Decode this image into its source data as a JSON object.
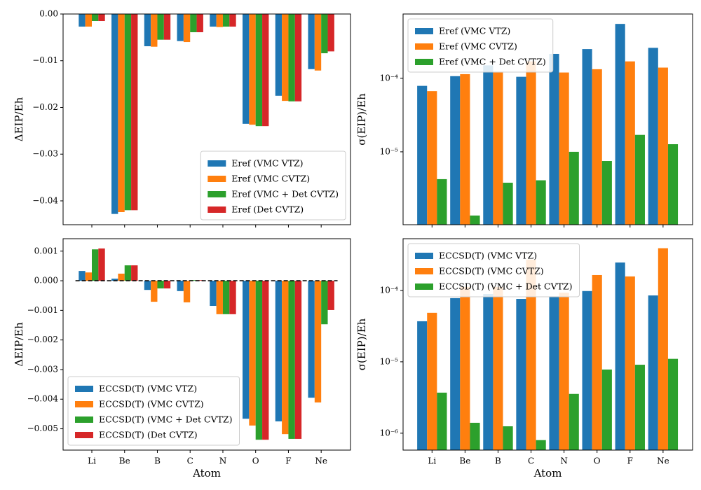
{
  "chart_data": [
    {
      "type": "bar",
      "ylabel": "ΔEIP/Eh",
      "legend": "lower right",
      "ylim": [
        -0.0451,
        0
      ],
      "yticks": [
        {
          "value": 0,
          "label": "0.00"
        },
        {
          "value": -0.01,
          "label": "−0.01"
        },
        {
          "value": -0.02,
          "label": "−0.02"
        },
        {
          "value": -0.03,
          "label": "−0.03"
        },
        {
          "value": -0.04,
          "label": "−0.04"
        }
      ],
      "series": [
        {
          "name": "Eref (VMC VTZ)",
          "color": "#1f77b4",
          "values": [
            -0.0027,
            -0.0428,
            -0.0069,
            -0.0058,
            -0.0027,
            -0.0235,
            -0.0175,
            -0.0118
          ]
        },
        {
          "name": "Eref (VMC CVTZ)",
          "color": "#ff7f0e",
          "values": [
            -0.0027,
            -0.0424,
            -0.007,
            -0.006,
            -0.0028,
            -0.0237,
            -0.0186,
            -0.0121
          ]
        },
        {
          "name": "Eref (VMC + Det CVTZ)",
          "color": "#2ca02c",
          "values": [
            -0.0015,
            -0.042,
            -0.0055,
            -0.0039,
            -0.0027,
            -0.024,
            -0.0187,
            -0.0084
          ]
        },
        {
          "name": "Eref (Det CVTZ)",
          "color": "#d62728",
          "values": [
            -0.0015,
            -0.042,
            -0.0055,
            -0.0039,
            -0.0027,
            -0.024,
            -0.0187,
            -0.008
          ]
        }
      ]
    },
    {
      "type": "bar",
      "ylabel": "σ(EIP)/Eh",
      "legend": "upper left",
      "log": true,
      "ylim": [
        1.02e-06,
        0.00075
      ],
      "yticks": [
        {
          "value": 1e-05,
          "label": "10⁻⁵"
        },
        {
          "value": 0.0001,
          "label": "10⁻⁴"
        }
      ],
      "series": [
        {
          "name": "Eref (VMC VTZ)",
          "color": "#1f77b4",
          "values": [
            7.9e-05,
            0.000107,
            0.00015,
            0.000105,
            0.000215,
            0.00025,
            0.00055,
            0.00026
          ]
        },
        {
          "name": "Eref (VMC CVTZ)",
          "color": "#ff7f0e",
          "values": [
            6.7e-05,
            0.000114,
            0.00012,
            0.00017,
            0.00012,
            0.000133,
            0.00017,
            0.00014
          ]
        },
        {
          "name": "Eref (VMC + Det CVTZ)",
          "color": "#2ca02c",
          "values": [
            4.25e-06,
            1.36e-06,
            3.8e-06,
            4.1e-06,
            1e-05,
            7.5e-06,
            1.7e-05,
            1.27e-05
          ]
        }
      ]
    },
    {
      "type": "bar",
      "ylabel": "ΔEIP/Eh",
      "xlabel": "Atom",
      "legend": "lower left",
      "categories": [
        "Li",
        "Be",
        "B",
        "C",
        "N",
        "O",
        "F",
        "Ne"
      ],
      "ylim": [
        -0.00572,
        0.00142
      ],
      "yticks": [
        {
          "value": 0.001,
          "label": "0.001"
        },
        {
          "value": 0,
          "label": "0.000"
        },
        {
          "value": -0.001,
          "label": "−0.001"
        },
        {
          "value": -0.002,
          "label": "−0.002"
        },
        {
          "value": -0.003,
          "label": "−0.003"
        },
        {
          "value": -0.004,
          "label": "−0.004"
        },
        {
          "value": -0.005,
          "label": "−0.005"
        }
      ],
      "series": [
        {
          "name": "ECCSD(T) (VMC VTZ)",
          "color": "#1f77b4",
          "values": [
            0.00033,
            7e-05,
            -0.00031,
            -0.00035,
            -0.00085,
            -0.00466,
            -0.00475,
            -0.00395
          ]
        },
        {
          "name": "ECCSD(T) (VMC CVTZ)",
          "color": "#ff7f0e",
          "values": [
            0.00028,
            0.00024,
            -0.00071,
            -0.00073,
            -0.00113,
            -0.00489,
            -0.00518,
            -0.00411
          ]
        },
        {
          "name": "ECCSD(T) (VMC + Det CVTZ)",
          "color": "#2ca02c",
          "values": [
            0.00106,
            0.00052,
            -0.00026,
            2e-05,
            -0.00113,
            -0.00537,
            -0.00534,
            -0.00147
          ]
        },
        {
          "name": "ECCSD(T) (Det CVTZ)",
          "color": "#d62728",
          "values": [
            0.00109,
            0.00052,
            -0.00026,
            2e-05,
            -0.00113,
            -0.00537,
            -0.00534,
            -0.00099
          ]
        }
      ]
    },
    {
      "type": "bar",
      "ylabel": "σ(EIP)/Eh",
      "xlabel": "Atom",
      "legend": "upper left",
      "log": true,
      "categories": [
        "Li",
        "Be",
        "B",
        "C",
        "N",
        "O",
        "F",
        "Ne"
      ],
      "ylim": [
        5.8e-07,
        0.00053
      ],
      "yticks": [
        {
          "value": 1e-06,
          "label": "10⁻⁶"
        },
        {
          "value": 1e-05,
          "label": "10⁻⁵"
        },
        {
          "value": 0.0001,
          "label": "10⁻⁴"
        }
      ],
      "series": [
        {
          "name": "ECCSD(T) (VMC VTZ)",
          "color": "#1f77b4",
          "values": [
            3.7e-05,
            7.8e-05,
            8.9e-05,
            7.6e-05,
            8.3e-05,
            9.8e-05,
            0.000246,
            8.5e-05
          ]
        },
        {
          "name": "ECCSD(T) (VMC CVTZ)",
          "color": "#ff7f0e",
          "values": [
            4.86e-05,
            0.000112,
            0.000112,
            0.00027,
            9.3e-05,
            0.000164,
            0.000157,
            0.00039
          ]
        },
        {
          "name": "ECCSD(T) (VMC + Det CVTZ)",
          "color": "#2ca02c",
          "values": [
            3.7e-06,
            1.4e-06,
            1.25e-06,
            8e-07,
            3.55e-06,
            7.8e-06,
            9.1e-06,
            1.1e-05
          ]
        }
      ]
    }
  ]
}
